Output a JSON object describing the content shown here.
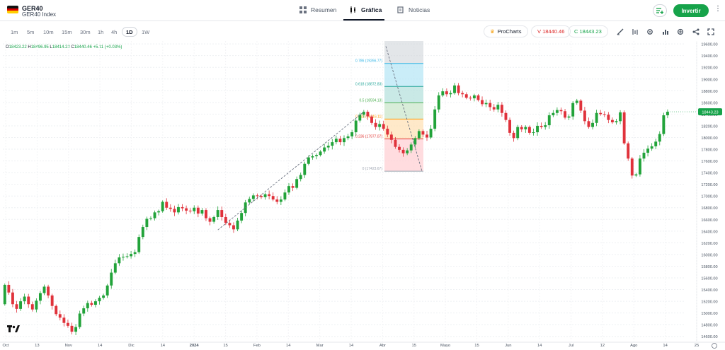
{
  "header": {
    "symbol": "GER40",
    "description": "GER40 Index",
    "tabs": [
      {
        "label": "Resumen",
        "icon": "grid-icon"
      },
      {
        "label": "Gráfica",
        "icon": "candles-icon"
      },
      {
        "label": "Noticias",
        "icon": "news-icon"
      }
    ],
    "invest_label": "Invertir"
  },
  "toolbar": {
    "timeframes": [
      "1m",
      "5m",
      "10m",
      "15m",
      "30m",
      "1h",
      "4h",
      "1D",
      "1W"
    ],
    "active_timeframe": "1D",
    "prochart_label": "ProCharts",
    "sell_label": "V 18440.46",
    "buy_label": "C 18443.23",
    "tools": [
      "pencil-icon",
      "indicators-icon",
      "settings-icon",
      "bars-icon",
      "crosshair-icon",
      "share-icon",
      "fullscreen-icon"
    ]
  },
  "ohlc": {
    "o_label": "O",
    "o": "18423.22",
    "h_label": "H",
    "h": "18496.95",
    "l_label": "L",
    "l": "18414.22",
    "c_label": "C",
    "c": "18440.46",
    "change": "+5.11 (+0.03%)"
  },
  "colors": {
    "up": "#22a33a",
    "down": "#e0323b",
    "accent": "#16a34a",
    "sell": "#dc2626",
    "buy": "#16a34a"
  },
  "chart_data": {
    "type": "candlestick",
    "ylim": [
      14500,
      19650
    ],
    "y_ticks": [
      14600,
      14800,
      15000,
      15200,
      15400,
      15600,
      15800,
      16000,
      16200,
      16400,
      16600,
      16800,
      17000,
      17200,
      17400,
      17600,
      17800,
      18000,
      18200,
      18400,
      18600,
      18800,
      19000,
      19200,
      19400,
      19600
    ],
    "x_labels": [
      "Oct",
      "13",
      "Nov",
      "14",
      "Dic",
      "14",
      "2024",
      "15",
      "Feb",
      "14",
      "Mar",
      "14",
      "Abr",
      "15",
      "Mayo",
      "15",
      "Jun",
      "14",
      "Jul",
      "12",
      "Ago",
      "14",
      "25"
    ],
    "current_price": "18443.23",
    "closes": [
      15480,
      15350,
      15150,
      15070,
      15200,
      15280,
      15150,
      15060,
      15210,
      15340,
      15450,
      15300,
      15120,
      14980,
      14920,
      14830,
      14780,
      14680,
      14760,
      14990,
      15080,
      15170,
      15140,
      15200,
      15260,
      15300,
      15470,
      15690,
      15850,
      15950,
      15960,
      15970,
      16010,
      16040,
      16300,
      16470,
      16610,
      16620,
      16720,
      16740,
      16900,
      16800,
      16780,
      16720,
      16810,
      16790,
      16750,
      16740,
      16800,
      16700,
      16760,
      16620,
      16560,
      16640,
      16760,
      16640,
      16540,
      16500,
      16430,
      16580,
      16710,
      16890,
      16950,
      17010,
      17000,
      16980,
      17030,
      17000,
      16940,
      16900,
      16940,
      17060,
      17170,
      17140,
      17290,
      17360,
      17550,
      17660,
      17680,
      17700,
      17760,
      17830,
      17860,
      17920,
      17980,
      17920,
      17990,
      18020,
      18090,
      18290,
      18390,
      18440,
      18360,
      18250,
      18180,
      18230,
      18150,
      18050,
      17960,
      17840,
      17790,
      17730,
      17780,
      17880,
      17990,
      18110,
      18050,
      18000,
      18150,
      18480,
      18720,
      18790,
      18740,
      18760,
      18890,
      18760,
      18740,
      18680,
      18670,
      18720,
      18640,
      18570,
      18590,
      18520,
      18480,
      18560,
      18420,
      18300,
      18080,
      17990,
      18180,
      18140,
      18180,
      18080,
      18090,
      18200,
      18180,
      18210,
      18380,
      18420,
      18470,
      18450,
      18340,
      18360,
      18590,
      18630,
      18460,
      18280,
      18180,
      18250,
      18420,
      18400,
      18390,
      18300,
      18260,
      18280,
      18430,
      17900,
      17640,
      17350,
      17370,
      17640,
      17740,
      17810,
      17850,
      17930,
      18060,
      18380,
      18440
    ],
    "opens": [
      15150,
      15480,
      15350,
      15150,
      15070,
      15200,
      15280,
      15150,
      15060,
      15210,
      15340,
      15450,
      15300,
      15120,
      14980,
      14920,
      14830,
      14780,
      14680,
      14760,
      14990,
      15080,
      15170,
      15140,
      15200,
      15260,
      15300,
      15470,
      15690,
      15850,
      15950,
      15960,
      15970,
      16010,
      16040,
      16300,
      16470,
      16610,
      16620,
      16720,
      16740,
      16900,
      16800,
      16780,
      16720,
      16810,
      16790,
      16750,
      16740,
      16800,
      16700,
      16760,
      16620,
      16560,
      16640,
      16760,
      16640,
      16540,
      16500,
      16430,
      16580,
      16710,
      16890,
      16950,
      17010,
      17000,
      16980,
      17030,
      17000,
      16940,
      16900,
      16940,
      17060,
      17170,
      17140,
      17290,
      17360,
      17550,
      17660,
      17680,
      17700,
      17760,
      17830,
      17860,
      17920,
      17980,
      17920,
      17990,
      18020,
      18090,
      18290,
      18390,
      18440,
      18360,
      18250,
      18180,
      18230,
      18150,
      18050,
      17960,
      17840,
      17790,
      17730,
      17780,
      17880,
      17990,
      18110,
      18050,
      18000,
      18150,
      18480,
      18720,
      18790,
      18740,
      18760,
      18890,
      18760,
      18740,
      18680,
      18670,
      18720,
      18640,
      18570,
      18590,
      18520,
      18480,
      18560,
      18420,
      18300,
      18080,
      17990,
      18180,
      18140,
      18180,
      18080,
      18090,
      18200,
      18180,
      18210,
      18380,
      18420,
      18470,
      18450,
      18340,
      18360,
      18590,
      18630,
      18460,
      18280,
      18180,
      18250,
      18420,
      18400,
      18390,
      18300,
      18260,
      18280,
      18430,
      17900,
      17640,
      17350,
      17370,
      17640,
      17740,
      17810,
      17850,
      17930,
      18060,
      18380
    ],
    "fib_levels": [
      {
        "label": "0.786 (19266.77)",
        "value": 19266.77,
        "color": "#33b5e5"
      },
      {
        "label": "0.618 (18872.83)",
        "value": 18872.83,
        "color": "#26a69a"
      },
      {
        "label": "0.5 (18594.13)",
        "value": 18594.13,
        "color": "#4caf50"
      },
      {
        "label": "0.382 (18316.11)",
        "value": 18316.11,
        "color": "#ff9800"
      },
      {
        "label": "0.236 (17977.07)",
        "value": 17977.07,
        "color": "#e53935"
      },
      {
        "label": "0 (17423.67)",
        "value": 17423.67,
        "color": "#9ca3af"
      }
    ]
  }
}
